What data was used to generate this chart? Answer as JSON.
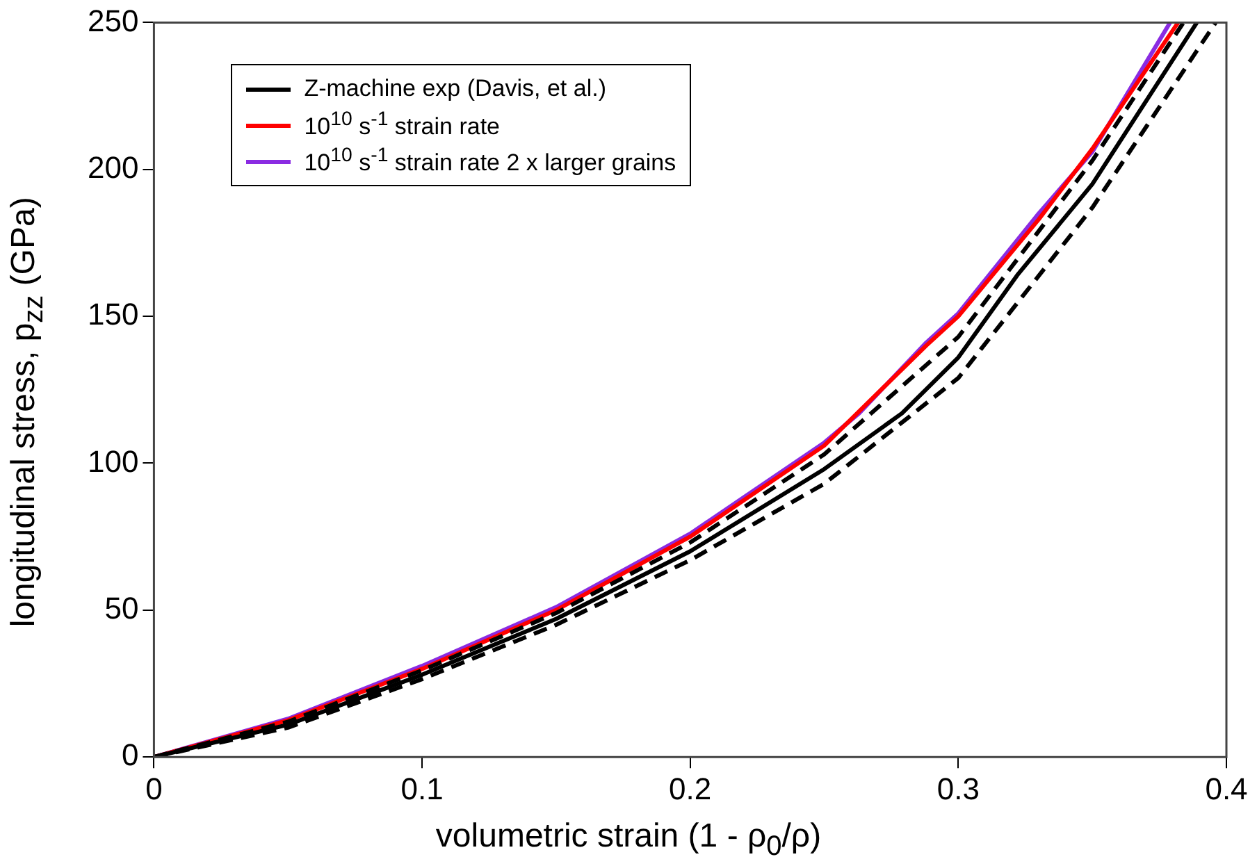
{
  "chart_data": {
    "type": "line",
    "xlabel": "volumetric strain (1 - ρ$_{0}$/ρ)",
    "ylabel": "longitudinal stress, p$_{zz}$ (GPa)",
    "xlim": [
      0,
      0.4
    ],
    "xticks": [
      0,
      0.1,
      0.2,
      0.3,
      0.4
    ],
    "ylim": [
      0,
      250
    ],
    "yticks": [
      0,
      50,
      100,
      150,
      200,
      250
    ],
    "grid": false,
    "legend": "top left",
    "marker": "none",
    "series": [
      {
        "name": "Z-machine exp (Davis, et al.)",
        "color": "#000000",
        "x": [
          0,
          0.05,
          0.1,
          0.15,
          0.2,
          0.25,
          0.279,
          0.3,
          0.322,
          0.35,
          0.389
        ],
        "values": [
          0,
          11,
          28,
          47,
          70,
          98,
          117,
          136,
          164,
          195,
          250
        ]
      },
      {
        "color": "#000000",
        "line_style": "dashed",
        "x": [
          0,
          0.05,
          0.1,
          0.15,
          0.2,
          0.25,
          0.3,
          0.35,
          0.384
        ],
        "values": [
          0,
          12,
          29.5,
          49,
          73,
          103,
          143,
          203,
          250
        ]
      },
      {
        "color": "#000000",
        "line_style": "dashed",
        "x": [
          0,
          0.05,
          0.1,
          0.15,
          0.2,
          0.25,
          0.3,
          0.35,
          0.396
        ],
        "values": [
          0,
          10,
          26.5,
          45,
          67,
          93,
          129,
          187,
          250
        ]
      },
      {
        "name": "10$^{10}$ s$^{-1}$ strain rate",
        "color": "#ff0000",
        "x": [
          0,
          0.05,
          0.1,
          0.15,
          0.2,
          0.25,
          0.288,
          0.3,
          0.33,
          0.35,
          0.382
        ],
        "values": [
          0,
          12.5,
          30,
          50,
          75,
          106,
          140,
          150,
          183,
          207,
          250
        ]
      },
      {
        "name": "10$^{10}$ s$^{-1}$ strain rate 2 x larger grains",
        "color": "#8a2be2",
        "x": [
          0,
          0.05,
          0.1,
          0.15,
          0.2,
          0.25,
          0.263,
          0.288,
          0.3,
          0.33,
          0.35,
          0.379
        ],
        "values": [
          0,
          13,
          31,
          51,
          76,
          107,
          117,
          141,
          151,
          185,
          206,
          250
        ]
      }
    ]
  }
}
